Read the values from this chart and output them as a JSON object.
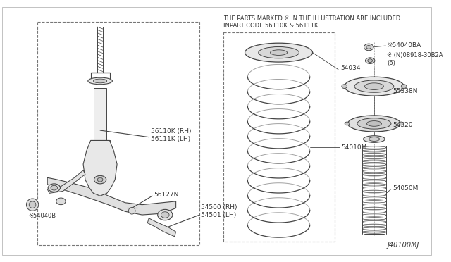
{
  "bg_color": "#ffffff",
  "notice_line1": "THE PARTS MARKED ※ IN THE ILLUSTRATION ARE INCLUDED",
  "notice_line2": "INPART CODE 56110K & 56111K",
  "diagram_id": "J40100MJ",
  "text_color": "#333333",
  "line_color": "#444444",
  "label_56110K": "56110K (RH)\n56111K (LH)",
  "label_56127N": "56127N",
  "label_54040B": "※54040B",
  "label_54500": "54500 (RH)\n54501 (LH)",
  "label_54034": "54034",
  "label_54010M": "54010M",
  "label_54040BA": "※54040BA",
  "label_08918": "※ (N)08918-30B2A\n(6)",
  "label_55338N": "55338N",
  "label_54320": "54320",
  "label_54050M": "54050M"
}
